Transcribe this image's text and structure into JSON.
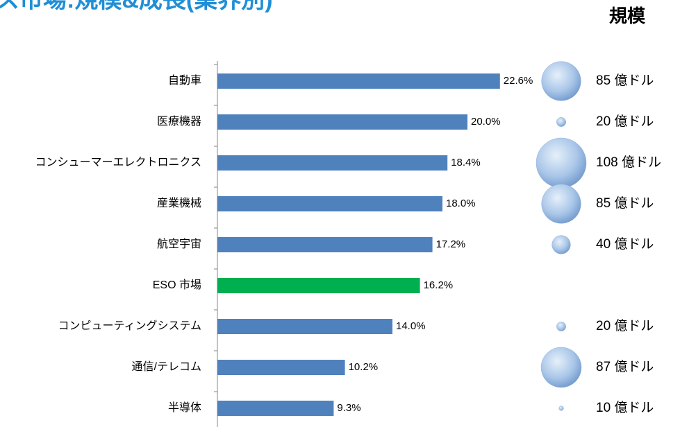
{
  "chart_data": {
    "type": "bar",
    "title": "ス市場:規模&成長(業界別)",
    "size_title": "規模",
    "categories": [
      "自動車",
      "医療機器",
      "コンシューマーエレクトロニクス",
      "産業機械",
      "航空宇宙",
      "ESO 市場",
      "コンピューティングシステム",
      "通信/テレコム",
      "半導体"
    ],
    "values": [
      22.6,
      20.0,
      18.4,
      18.0,
      17.2,
      16.2,
      14.0,
      10.2,
      9.3
    ],
    "value_labels": [
      "22.6%",
      "20.0%",
      "18.4%",
      "18.0%",
      "17.2%",
      "16.2%",
      "14.0%",
      "10.2%",
      "9.3%"
    ],
    "colors": [
      "#4f81bd",
      "#4f81bd",
      "#4f81bd",
      "#4f81bd",
      "#4f81bd",
      "#00b050",
      "#4f81bd",
      "#4f81bd",
      "#4f81bd"
    ],
    "sizes": [
      85,
      20,
      108,
      85,
      40,
      null,
      20,
      87,
      10
    ],
    "size_labels": [
      "85 億ドル",
      "20 億ドル",
      "108 億ドル",
      "85 億ドル",
      "40 億ドル",
      null,
      "20 億ドル",
      "87 億ドル",
      "10 億ドル"
    ],
    "xlim": [
      0,
      25
    ]
  }
}
